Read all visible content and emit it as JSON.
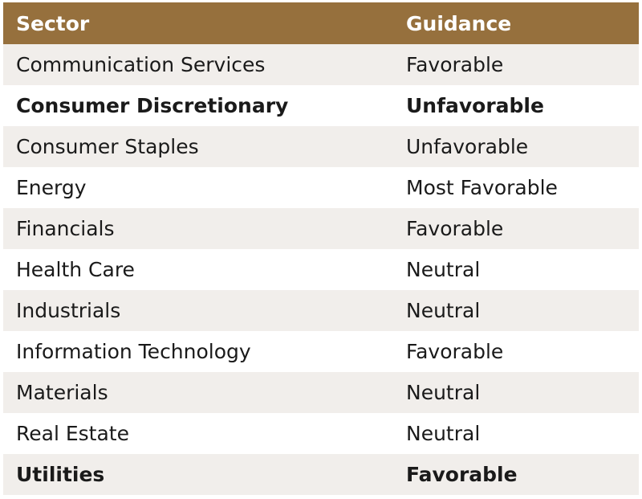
{
  "table": {
    "headers": {
      "sector": "Sector",
      "guidance": "Guidance"
    },
    "header_color": "#96703d",
    "rows": [
      {
        "sector": "Communication Services",
        "guidance": "Favorable",
        "bold": false
      },
      {
        "sector": "Consumer Discretionary",
        "guidance": "Unfavorable",
        "bold": true
      },
      {
        "sector": "Consumer Staples",
        "guidance": "Unfavorable",
        "bold": false
      },
      {
        "sector": "Energy",
        "guidance": "Most Favorable",
        "bold": false
      },
      {
        "sector": "Financials",
        "guidance": "Favorable",
        "bold": false
      },
      {
        "sector": "Health Care",
        "guidance": "Neutral",
        "bold": false
      },
      {
        "sector": "Industrials",
        "guidance": "Neutral",
        "bold": false
      },
      {
        "sector": "Information Technology",
        "guidance": "Favorable",
        "bold": false
      },
      {
        "sector": "Materials",
        "guidance": "Neutral",
        "bold": false
      },
      {
        "sector": "Real Estate",
        "guidance": "Neutral",
        "bold": false
      },
      {
        "sector": "Utilities",
        "guidance": "Favorable",
        "bold": true
      }
    ]
  }
}
